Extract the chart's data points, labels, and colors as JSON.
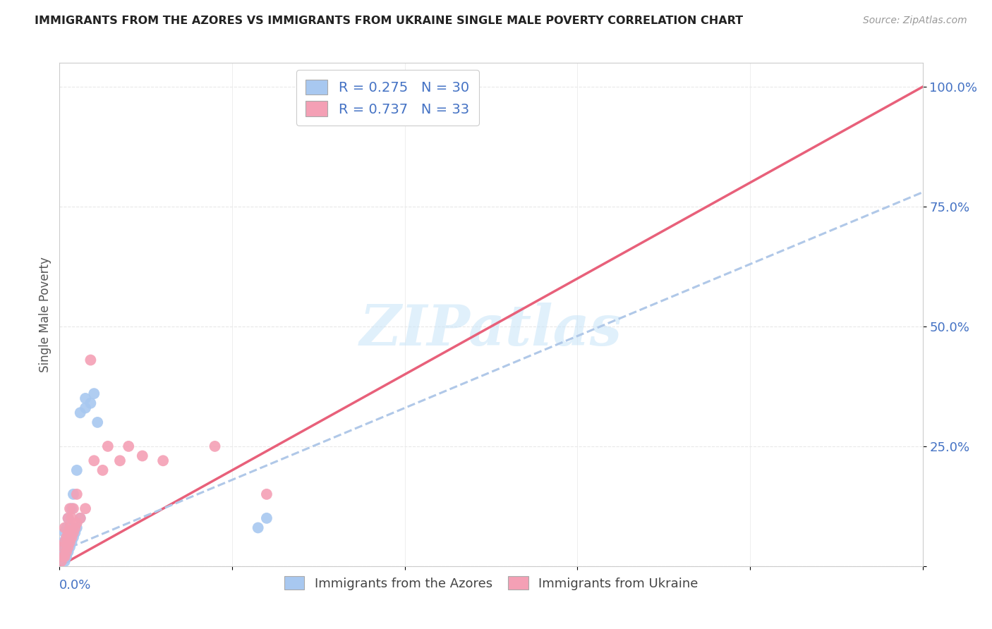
{
  "title": "IMMIGRANTS FROM THE AZORES VS IMMIGRANTS FROM UKRAINE SINGLE MALE POVERTY CORRELATION CHART",
  "source": "Source: ZipAtlas.com",
  "ylabel": "Single Male Poverty",
  "xlim": [
    0.0,
    0.5
  ],
  "ylim": [
    0.0,
    1.05
  ],
  "azores_R": 0.275,
  "azores_N": 30,
  "ukraine_R": 0.737,
  "ukraine_N": 33,
  "azores_color": "#a8c8f0",
  "ukraine_color": "#f4a0b5",
  "azores_line_color": "#b0c8e8",
  "ukraine_line_color": "#e8607a",
  "azores_line_style": "--",
  "ukraine_line_style": "-",
  "legend_label_azores": "Immigrants from the Azores",
  "legend_label_ukraine": "Immigrants from Ukraine",
  "watermark": "ZIPatlas",
  "title_color": "#222222",
  "axis_color": "#4472c4",
  "background_color": "#ffffff",
  "grid_color": "#e8e8e8",
  "yticks": [
    0.0,
    0.25,
    0.5,
    0.75,
    1.0
  ],
  "ytick_labels": [
    "",
    "25.0%",
    "50.0%",
    "75.0%",
    "100.0%"
  ],
  "xtick_positions": [
    0.0,
    0.1,
    0.2,
    0.3,
    0.4,
    0.5
  ],
  "azores_points": [
    [
      0.001,
      0.02
    ],
    [
      0.002,
      0.03
    ],
    [
      0.002,
      0.05
    ],
    [
      0.003,
      0.01
    ],
    [
      0.003,
      0.04
    ],
    [
      0.003,
      0.07
    ],
    [
      0.004,
      0.02
    ],
    [
      0.004,
      0.05
    ],
    [
      0.004,
      0.08
    ],
    [
      0.005,
      0.03
    ],
    [
      0.005,
      0.06
    ],
    [
      0.005,
      0.1
    ],
    [
      0.006,
      0.04
    ],
    [
      0.006,
      0.08
    ],
    [
      0.007,
      0.05
    ],
    [
      0.007,
      0.12
    ],
    [
      0.008,
      0.06
    ],
    [
      0.008,
      0.15
    ],
    [
      0.009,
      0.07
    ],
    [
      0.01,
      0.08
    ],
    [
      0.01,
      0.2
    ],
    [
      0.012,
      0.1
    ],
    [
      0.012,
      0.32
    ],
    [
      0.015,
      0.33
    ],
    [
      0.015,
      0.35
    ],
    [
      0.018,
      0.34
    ],
    [
      0.02,
      0.36
    ],
    [
      0.022,
      0.3
    ],
    [
      0.115,
      0.08
    ],
    [
      0.12,
      0.1
    ]
  ],
  "ukraine_points": [
    [
      0.001,
      0.01
    ],
    [
      0.002,
      0.02
    ],
    [
      0.002,
      0.04
    ],
    [
      0.003,
      0.02
    ],
    [
      0.003,
      0.05
    ],
    [
      0.003,
      0.08
    ],
    [
      0.004,
      0.03
    ],
    [
      0.004,
      0.06
    ],
    [
      0.005,
      0.04
    ],
    [
      0.005,
      0.07
    ],
    [
      0.005,
      0.1
    ],
    [
      0.006,
      0.05
    ],
    [
      0.006,
      0.08
    ],
    [
      0.006,
      0.12
    ],
    [
      0.007,
      0.06
    ],
    [
      0.007,
      0.1
    ],
    [
      0.008,
      0.07
    ],
    [
      0.008,
      0.12
    ],
    [
      0.009,
      0.08
    ],
    [
      0.01,
      0.09
    ],
    [
      0.01,
      0.15
    ],
    [
      0.012,
      0.1
    ],
    [
      0.015,
      0.12
    ],
    [
      0.018,
      0.43
    ],
    [
      0.02,
      0.22
    ],
    [
      0.025,
      0.2
    ],
    [
      0.028,
      0.25
    ],
    [
      0.035,
      0.22
    ],
    [
      0.04,
      0.25
    ],
    [
      0.048,
      0.23
    ],
    [
      0.06,
      0.22
    ],
    [
      0.09,
      0.25
    ],
    [
      0.12,
      0.15
    ]
  ],
  "ukraine_line_x": [
    0.0,
    0.5
  ],
  "ukraine_line_y": [
    0.0,
    1.0
  ],
  "azores_line_x": [
    0.0,
    0.5
  ],
  "azores_line_y": [
    0.03,
    0.78
  ]
}
